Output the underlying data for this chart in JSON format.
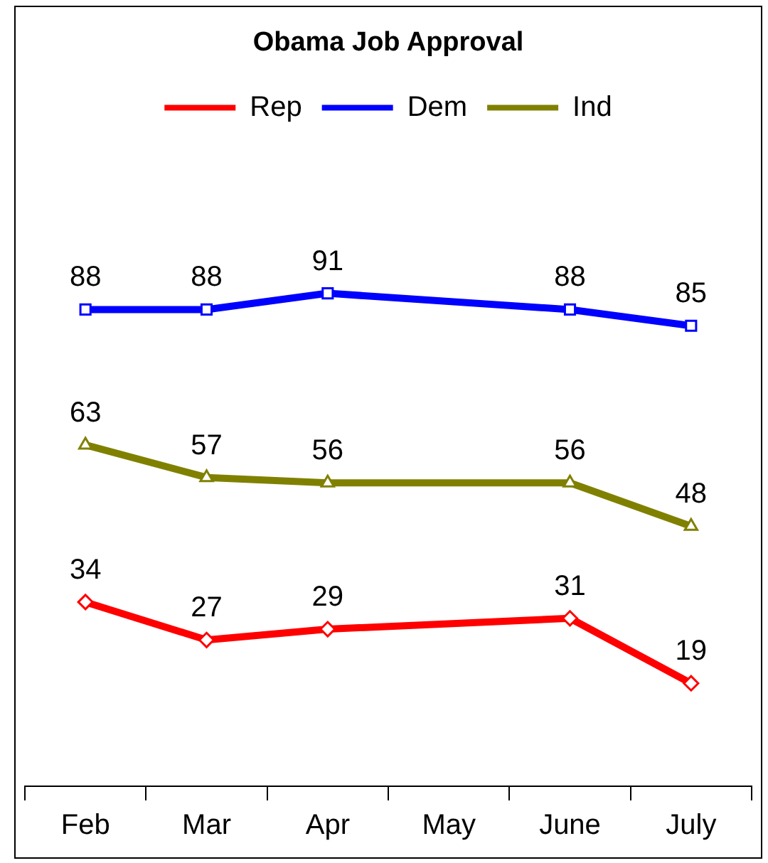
{
  "chart_data": {
    "type": "line",
    "title": "Obama Job Approval",
    "categories": [
      "Feb",
      "Mar",
      "Apr",
      "May",
      "June",
      "July"
    ],
    "series": [
      {
        "name": "Rep",
        "color": "#ff0000",
        "marker": "diamond",
        "values": [
          34,
          27,
          29,
          null,
          31,
          19
        ]
      },
      {
        "name": "Dem",
        "color": "#0000ff",
        "marker": "square",
        "values": [
          88,
          88,
          91,
          null,
          88,
          85
        ]
      },
      {
        "name": "Ind",
        "color": "#808000",
        "marker": "triangle",
        "values": [
          63,
          57,
          56,
          null,
          56,
          48
        ]
      }
    ],
    "tick_labels": "x",
    "grid": false,
    "legend": "top",
    "data_labels": true
  }
}
